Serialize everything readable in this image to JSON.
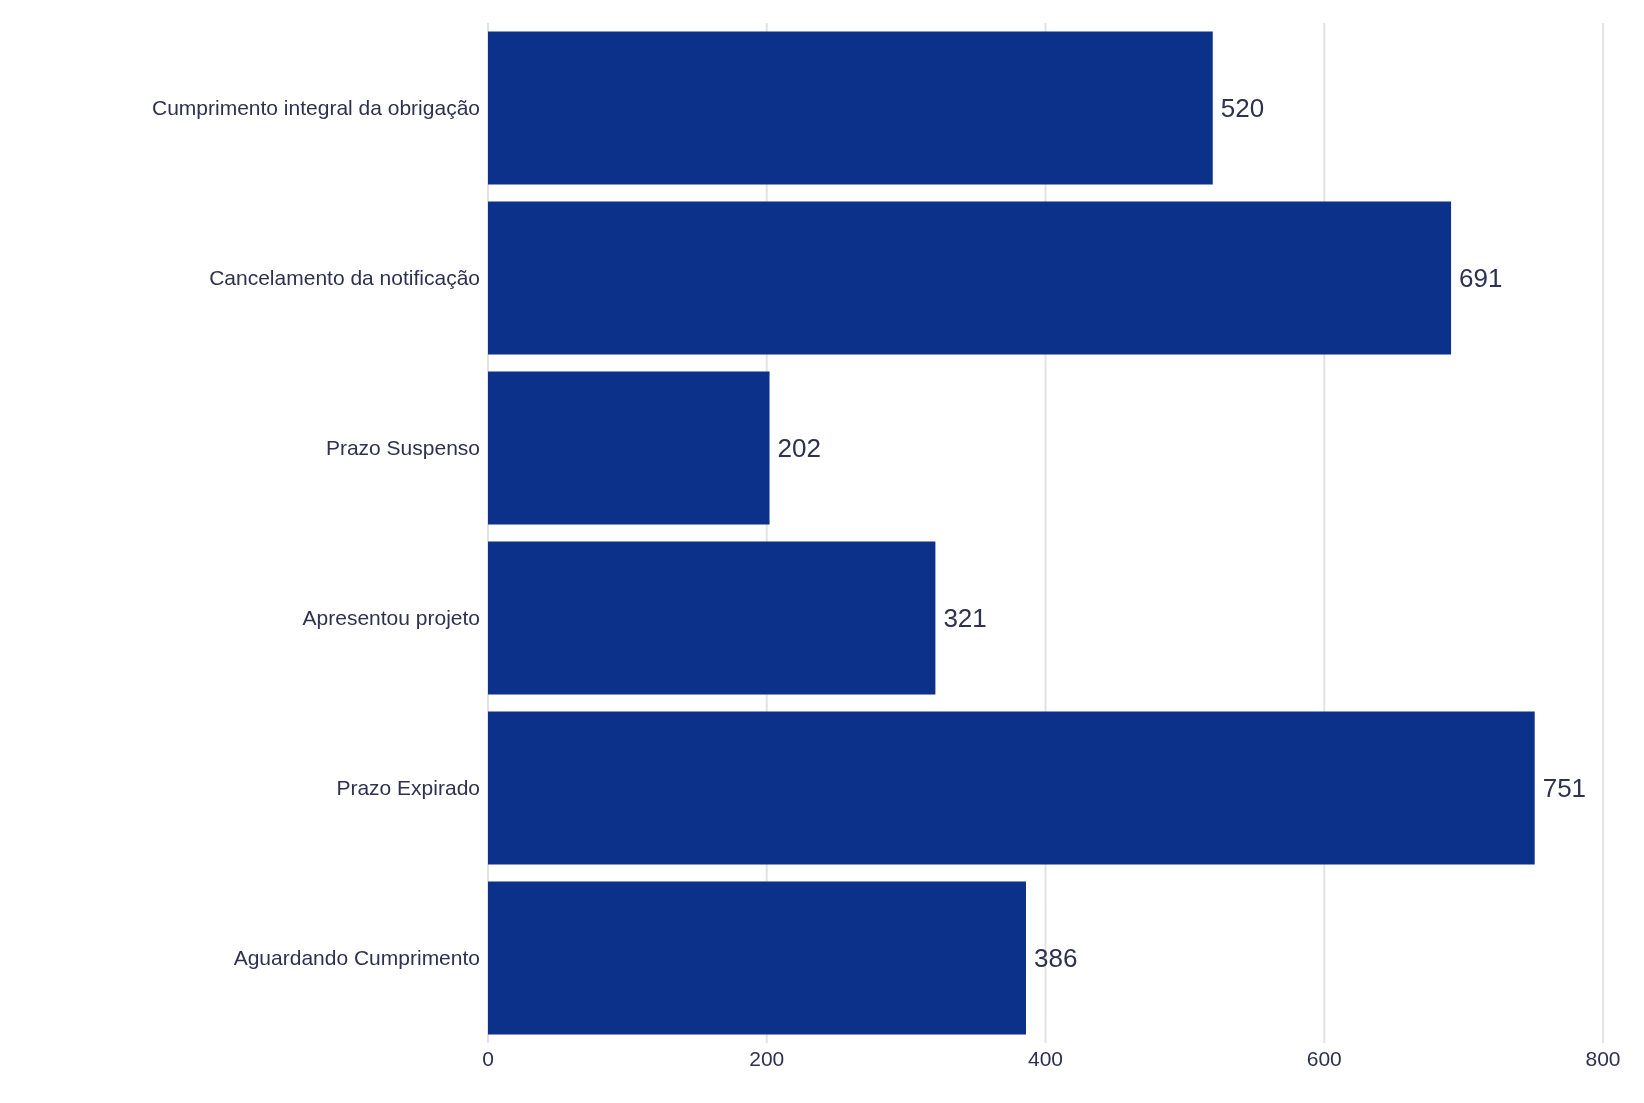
{
  "chart_data": {
    "type": "bar",
    "orientation": "horizontal",
    "categories": [
      "Cumprimento integral da obrigação",
      "Cancelamento da notificação",
      "Prazo Suspenso",
      "Apresentou projeto",
      "Prazo Expirado",
      "Aguardando Cumprimento"
    ],
    "values": [
      520,
      691,
      202,
      321,
      751,
      386
    ],
    "color": "#0b318a",
    "xlim": [
      0,
      800
    ],
    "xticks": [
      0,
      200,
      400,
      600,
      800
    ],
    "grid": "x",
    "data_labels": true
  }
}
